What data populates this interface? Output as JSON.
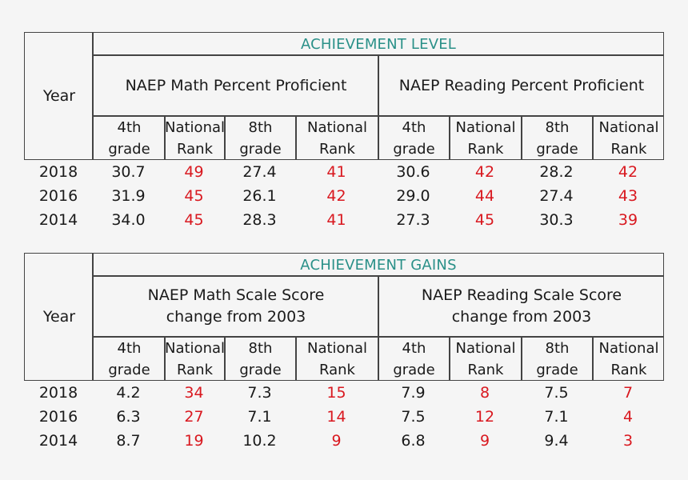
{
  "tables": [
    {
      "section_title": "ACHIEVEMENT LEVEL",
      "year_header": "Year",
      "math_header": "NAEP Math Percent Proficient",
      "reading_header": "NAEP Reading Percent Proficient",
      "col_headers": [
        "4th grade",
        "National Rank",
        "8th grade",
        "National Rank",
        "4th grade",
        "National Rank",
        "8th grade",
        "National Rank"
      ],
      "rows": [
        {
          "year": "2018",
          "values": [
            "30.7",
            "49",
            "27.4",
            "41",
            "30.6",
            "42",
            "28.2",
            "42"
          ]
        },
        {
          "year": "2016",
          "values": [
            "31.9",
            "45",
            "26.1",
            "42",
            "29.0",
            "44",
            "27.4",
            "43"
          ]
        },
        {
          "year": "2014",
          "values": [
            "34.0",
            "45",
            "28.3",
            "41",
            "27.3",
            "45",
            "30.3",
            "39"
          ]
        }
      ]
    },
    {
      "section_title": "ACHIEVEMENT GAINS",
      "year_header": "Year",
      "math_header": "NAEP Math Scale Score change from 2003",
      "reading_header": "NAEP Reading Scale Score change from 2003",
      "col_headers": [
        "4th grade",
        "National Rank",
        "8th grade",
        "National Rank",
        "4th grade",
        "National Rank",
        "8th grade",
        "National Rank"
      ],
      "rows": [
        {
          "year": "2018",
          "values": [
            "4.2",
            "34",
            "7.3",
            "15",
            "7.9",
            "8",
            "7.5",
            "7"
          ]
        },
        {
          "year": "2016",
          "values": [
            "6.3",
            "27",
            "7.1",
            "14",
            "7.5",
            "12",
            "7.1",
            "4"
          ]
        },
        {
          "year": "2014",
          "values": [
            "8.7",
            "19",
            "10.2",
            "9",
            "6.8",
            "9",
            "9.4",
            "3"
          ]
        }
      ]
    }
  ],
  "colors": {
    "accent": "#2a9088",
    "rank": "#d9181f",
    "text": "#1a1a1a",
    "rule": "#444444",
    "background": "#f5f5f5"
  }
}
